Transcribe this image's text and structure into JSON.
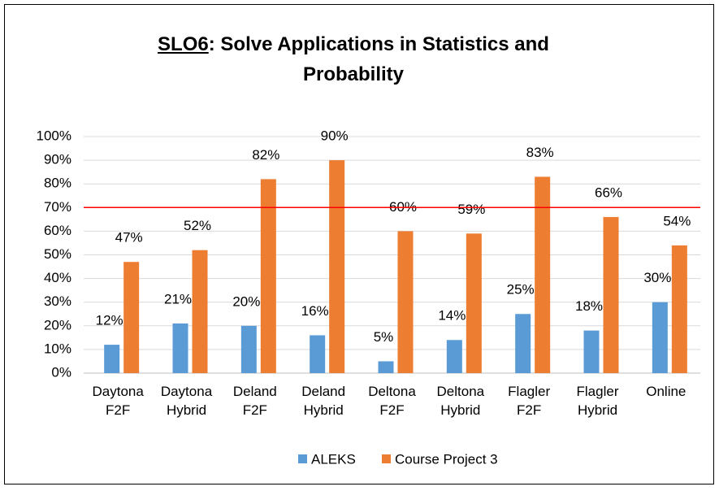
{
  "chart_data": {
    "type": "bar",
    "title": {
      "underlined": "SLO6",
      "text": ": Solve Applications in Statistics and Probability"
    },
    "categories": [
      "Daytona F2F",
      "Daytona Hybrid",
      "Deland F2F",
      "Deland Hybrid",
      "Deltona F2F",
      "Deltona Hybrid",
      "Flagler F2F",
      "Flagler Hybrid",
      "Online"
    ],
    "series": [
      {
        "name": "ALEKS",
        "color": "#5b9bd5",
        "values": [
          12,
          21,
          20,
          16,
          5,
          14,
          25,
          18,
          30
        ],
        "value_labels": [
          "12%",
          "21%",
          "20%",
          "16%",
          "5%",
          "14%",
          "25%",
          "18%",
          "30%"
        ]
      },
      {
        "name": "Course Project 3",
        "color": "#ed7d31",
        "values": [
          47,
          52,
          82,
          90,
          60,
          59,
          83,
          66,
          54
        ],
        "value_labels": [
          "47%",
          "52%",
          "82%",
          "90%",
          "60%",
          "59%",
          "83%",
          "66%",
          "54%"
        ]
      }
    ],
    "ylim": [
      0,
      100
    ],
    "yticks": [
      {
        "value": 0,
        "label": "0%"
      },
      {
        "value": 10,
        "label": "10%"
      },
      {
        "value": 20,
        "label": "20%"
      },
      {
        "value": 30,
        "label": "30%"
      },
      {
        "value": 40,
        "label": "40%"
      },
      {
        "value": 50,
        "label": "50%"
      },
      {
        "value": 60,
        "label": "60%"
      },
      {
        "value": 70,
        "label": "70%"
      },
      {
        "value": 80,
        "label": "80%"
      },
      {
        "value": 90,
        "label": "90%"
      },
      {
        "value": 100,
        "label": "100%"
      }
    ],
    "grid": true,
    "reference_line": {
      "value": 70,
      "color": "#ff0000"
    },
    "legend": "bottom"
  }
}
